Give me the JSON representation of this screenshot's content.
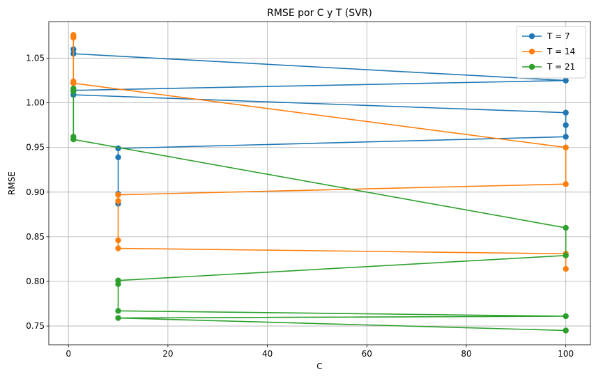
{
  "chart_data": {
    "type": "line",
    "title": "RMSE por C y T (SVR)",
    "xlabel": "C",
    "ylabel": "RMSE",
    "xlim": [
      -3.95,
      104.95
    ],
    "ylim": [
      0.729,
      1.091
    ],
    "xticks": [
      0,
      20,
      40,
      60,
      80,
      100
    ],
    "yticks": [
      0.75,
      0.8,
      0.85,
      0.9,
      0.95,
      1.0,
      1.05
    ],
    "grid": true,
    "legend": "top-right",
    "series": [
      {
        "name": "T = 7",
        "color": "#1f77b4",
        "x": [
          1,
          1,
          100,
          1,
          1,
          100,
          100,
          100,
          10,
          10,
          10,
          10
        ],
        "y": [
          1.06,
          1.055,
          1.025,
          1.014,
          1.009,
          0.989,
          0.975,
          0.962,
          0.949,
          0.939,
          0.898,
          0.887
        ]
      },
      {
        "name": "T = 14",
        "color": "#ff7f0e",
        "x": [
          1,
          1,
          1,
          1,
          100,
          100,
          10,
          10,
          10,
          10,
          100,
          100
        ],
        "y": [
          1.076,
          1.073,
          1.024,
          1.022,
          0.95,
          0.909,
          0.897,
          0.89,
          0.846,
          0.837,
          0.831,
          0.814
        ]
      },
      {
        "name": "T = 21",
        "color": "#2ca02c",
        "x": [
          1,
          1,
          1,
          1,
          100,
          100,
          10,
          10,
          10,
          100,
          10,
          100
        ],
        "y": [
          1.016,
          1.013,
          0.962,
          0.959,
          0.86,
          0.829,
          0.801,
          0.797,
          0.767,
          0.761,
          0.759,
          0.745
        ]
      }
    ]
  }
}
